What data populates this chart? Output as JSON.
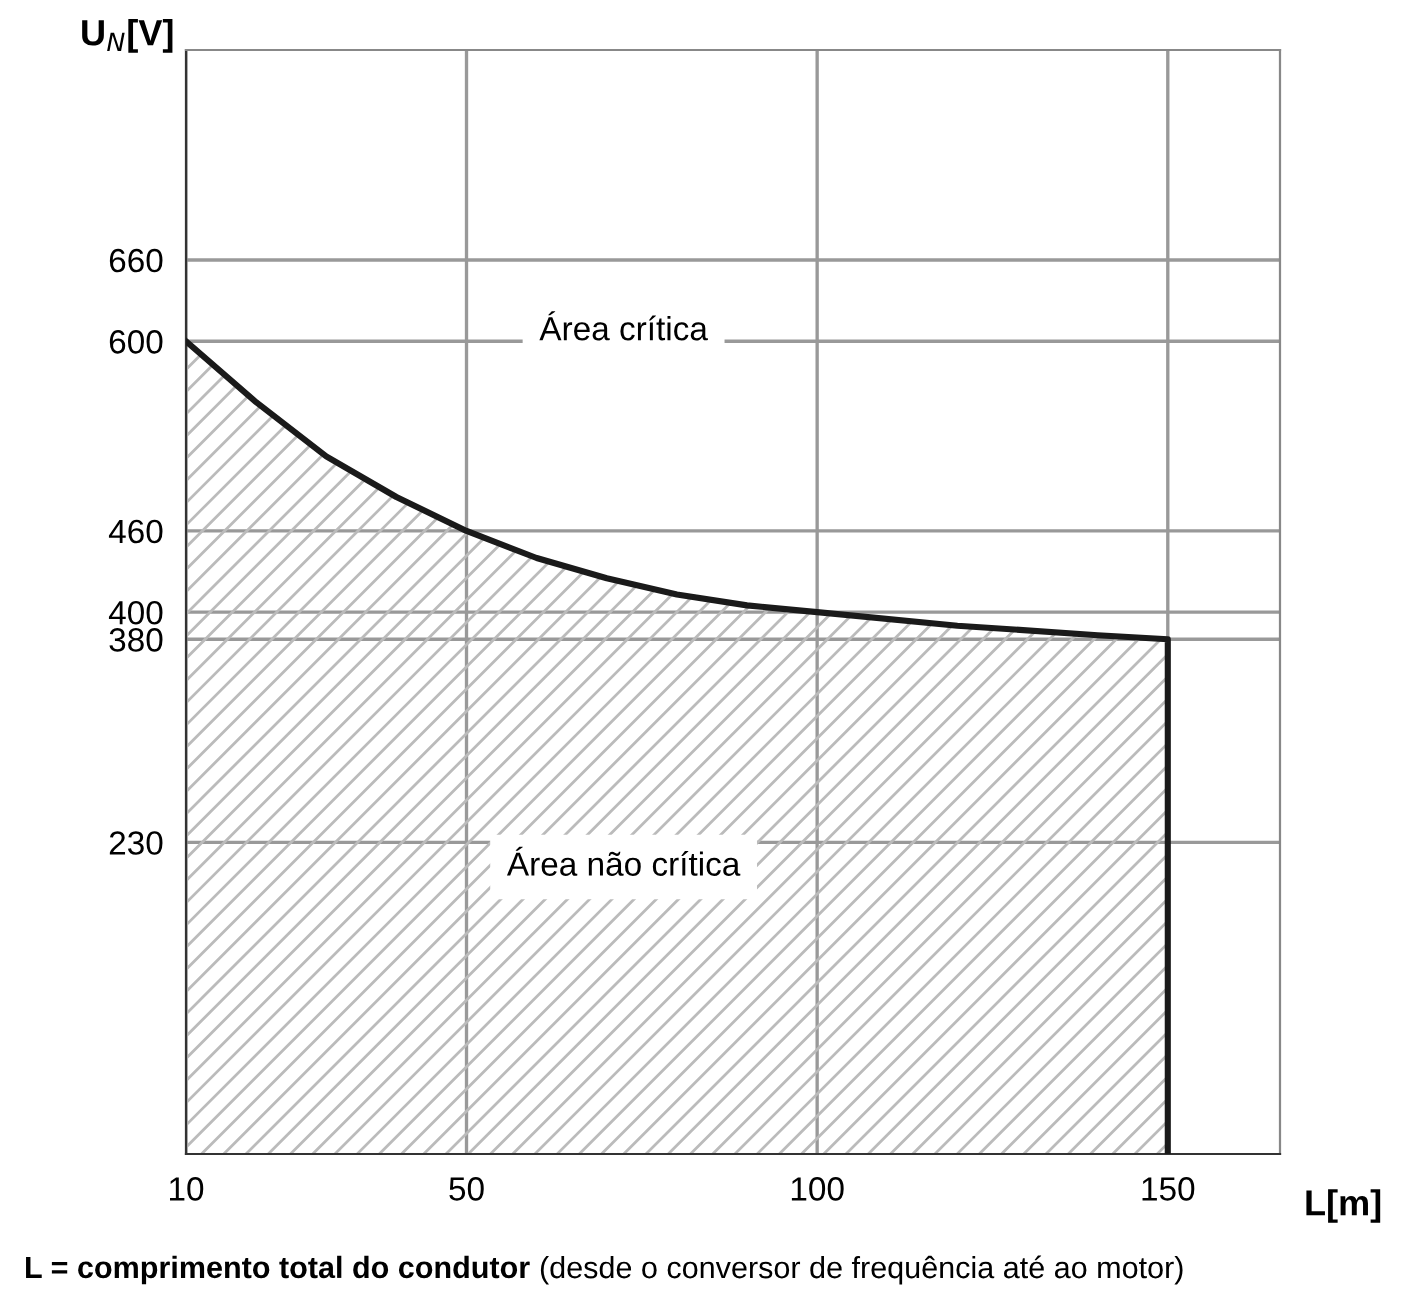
{
  "chart_data": {
    "type": "area",
    "ylabel": "U$_{N}$[V]",
    "xlabel": "L[m]",
    "x": [
      10,
      20,
      30,
      40,
      50,
      60,
      70,
      80,
      90,
      100,
      120,
      140,
      150,
      150
    ],
    "series": [
      {
        "color": "#1a1a1a",
        "values": [
          600,
          555,
          515,
          485,
          460,
          440,
          425,
          413,
          405,
          400,
          390,
          383,
          380,
          0
        ]
      }
    ],
    "xlim": [
      10,
      166
    ],
    "ylim": [
      0,
      815
    ],
    "xticks": [
      10,
      50,
      100,
      150
    ],
    "yticks": [
      230,
      380,
      400,
      460,
      600,
      660
    ],
    "grid": true,
    "annotations": [
      "Área crítica",
      "Área não crítica",
      "L = comprimento total do condutor",
      "(desde o conversor de frequência até ao motor)"
    ]
  }
}
